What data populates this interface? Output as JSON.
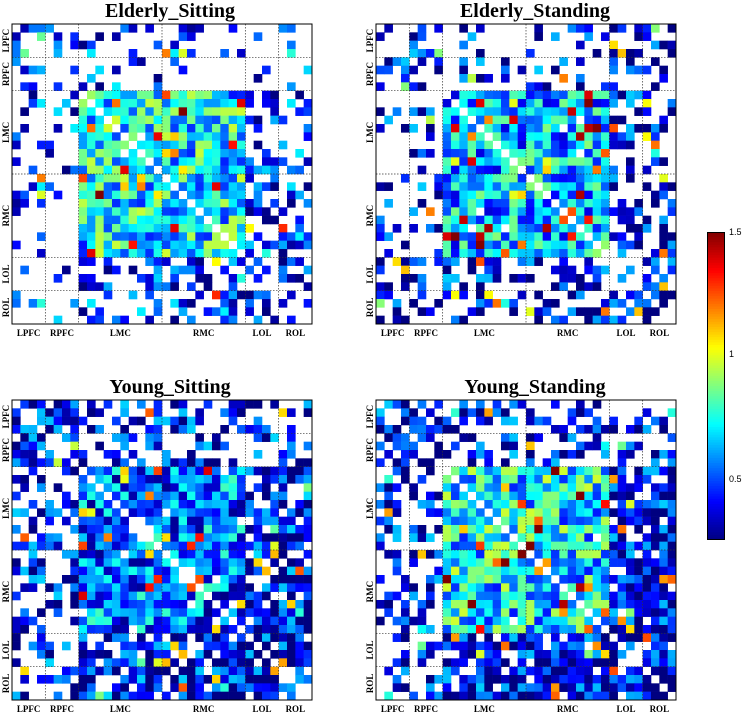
{
  "chart_data": {
    "type": "heatmap",
    "colormap": "jet",
    "colorbar": {
      "ticks": [
        "1.5",
        "1",
        "0.5"
      ],
      "tick_values": [
        1.5,
        1.0,
        0.5
      ],
      "range": [
        0.25,
        1.5
      ]
    },
    "group_labels": [
      "LPFC",
      "RPFC",
      "LMC",
      "RMC",
      "LOL",
      "ROL"
    ],
    "group_sizes": [
      4,
      4,
      10,
      10,
      4,
      4
    ],
    "panels": [
      {
        "id": "elderly-sitting",
        "title": "Elderly_Sitting",
        "seed": 11,
        "density": {
          "pfc": 0.35,
          "mc": 0.98,
          "ol": 0.45,
          "pfc_ol": 0.2
        },
        "level": {
          "mc": 0.62,
          "other": 0.35
        }
      },
      {
        "id": "elderly-standing",
        "title": "Elderly_Standing",
        "seed": 23,
        "density": {
          "pfc": 0.4,
          "mc": 0.97,
          "ol": 0.55,
          "pfc_ol": 0.25
        },
        "level": {
          "mc": 0.55,
          "other": 0.3
        }
      },
      {
        "id": "young-sitting",
        "title": "Young_Sitting",
        "seed": 37,
        "density": {
          "pfc": 0.7,
          "mc": 0.95,
          "ol": 0.75,
          "pfc_ol": 0.45
        },
        "level": {
          "mc": 0.45,
          "other": 0.32
        }
      },
      {
        "id": "young-standing",
        "title": "Young_Standing",
        "seed": 41,
        "density": {
          "pfc": 0.7,
          "mc": 0.99,
          "ol": 0.9,
          "pfc_ol": 0.4
        },
        "level": {
          "mc": 0.62,
          "other": 0.3
        }
      }
    ]
  }
}
